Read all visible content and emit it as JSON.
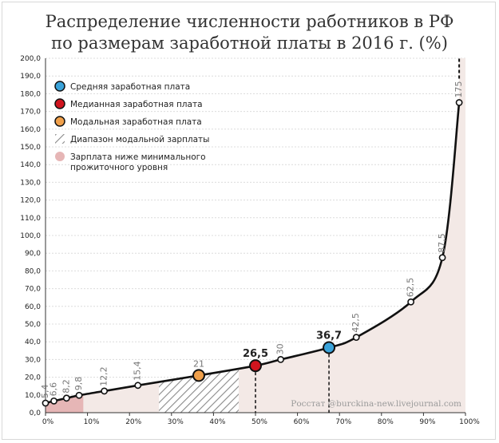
{
  "chart_data": {
    "type": "line",
    "title_lines": [
      "Распределение численности работников в РФ",
      "по размерам заработной платы в 2016 г. (%)"
    ],
    "xlabel": "",
    "ylabel": "",
    "xlim": [
      0,
      100
    ],
    "ylim": [
      0,
      200
    ],
    "y_ticks": [
      "0,0",
      "10,0",
      "20,0",
      "30,0",
      "40,0",
      "50,0",
      "60,0",
      "70,0",
      "80,0",
      "90,0",
      "100,0",
      "110,0",
      "120,0",
      "130,0",
      "140,0",
      "150,0",
      "160,0",
      "170,0",
      "180,0",
      "190,0",
      "200,0"
    ],
    "x_ticks": [
      "0%",
      "10%",
      "20%",
      "30%",
      "40%",
      "50%",
      "60%",
      "70%",
      "80%",
      "90%",
      "100%"
    ],
    "grid": true,
    "points": [
      {
        "x": 0,
        "y": 5.4,
        "label": "5,4"
      },
      {
        "x": 2,
        "y": 6.6,
        "label": "6,6"
      },
      {
        "x": 5,
        "y": 8.2,
        "label": "8,2"
      },
      {
        "x": 8,
        "y": 9.8,
        "label": "9,8"
      },
      {
        "x": 14,
        "y": 12.2,
        "label": "12,2"
      },
      {
        "x": 22,
        "y": 15.4,
        "label": "15,4"
      },
      {
        "x": 56,
        "y": 30,
        "label": "30"
      },
      {
        "x": 74,
        "y": 42.5,
        "label": "42,5"
      },
      {
        "x": 87,
        "y": 62.5,
        "label": "62,5"
      },
      {
        "x": 94.5,
        "y": 87.5,
        "label": "87,5"
      },
      {
        "x": 98.5,
        "y": 175,
        "label": "175"
      }
    ],
    "highlights": [
      {
        "name": "Средняя заработная плата",
        "x": 67.5,
        "y": 36.7,
        "label": "36,7",
        "color": "#3aa3da"
      },
      {
        "name": "Медианная заработная плата",
        "x": 50,
        "y": 26.5,
        "label": "26,5",
        "color": "#d0141e"
      },
      {
        "name": "Модальная заработная плата",
        "x": 36.5,
        "y": 21,
        "label": "21",
        "color": "#f0a04b"
      }
    ],
    "modal_range": {
      "name": "Диапазон модальной зарплаты",
      "x_from": 27,
      "x_to": 46
    },
    "below_minimum": {
      "name": "Зарплата ниже минимального прожиточного уровня",
      "x_from": 0,
      "x_to": 9,
      "color": "#e6b6b6"
    },
    "legend": [
      {
        "marker": "dot",
        "color": "#3aa3da",
        "lines": [
          "Средняя заработная плата"
        ]
      },
      {
        "marker": "dot",
        "color": "#d0141e",
        "lines": [
          "Медианная заработная плата"
        ]
      },
      {
        "marker": "dot",
        "color": "#f0a04b",
        "lines": [
          "Модальная заработная плата"
        ]
      },
      {
        "marker": "hatch",
        "color": "#777777",
        "lines": [
          "Диапазон модальной зарплаты"
        ]
      },
      {
        "marker": "dot",
        "color": "#e6b6b6",
        "lines": [
          "Зарплата ниже минимального",
          "прожиточного уровня"
        ]
      }
    ],
    "legend_position": "top-left",
    "source": "Росстат @burckina-new.livejournal.com",
    "area_color": "#f3e9e6"
  }
}
